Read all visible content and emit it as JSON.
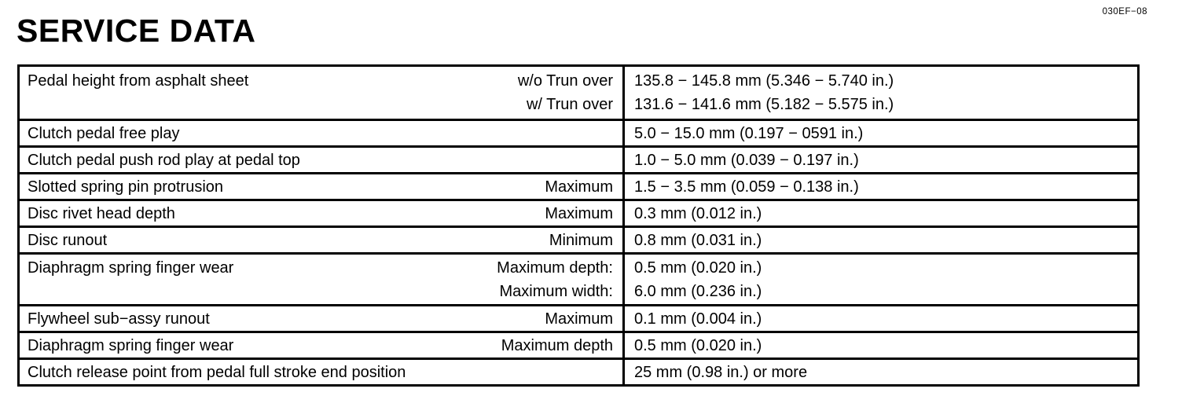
{
  "page": {
    "title": "SERVICE DATA",
    "doc_code": "030EF−08"
  },
  "table": {
    "rows": [
      {
        "label": "Pedal height from asphalt sheet",
        "lines": [
          {
            "qualifier": "w/o Trun over",
            "value": "135.8 − 145.8 mm (5.346 − 5.740 in.)"
          },
          {
            "qualifier": "w/ Trun over",
            "value": "131.6 − 141.6 mm (5.182 − 5.575 in.)"
          }
        ]
      },
      {
        "label": "Clutch pedal free play",
        "lines": [
          {
            "qualifier": "",
            "value": "5.0 − 15.0 mm (0.197 − 0591 in.)"
          }
        ]
      },
      {
        "label": "Clutch pedal push rod play at pedal top",
        "lines": [
          {
            "qualifier": "",
            "value": "1.0 − 5.0 mm (0.039 − 0.197 in.)"
          }
        ]
      },
      {
        "label": "Slotted spring pin protrusion",
        "lines": [
          {
            "qualifier": "Maximum",
            "value": "1.5 − 3.5 mm (0.059 − 0.138 in.)"
          }
        ]
      },
      {
        "label": "Disc rivet head depth",
        "lines": [
          {
            "qualifier": "Maximum",
            "value": "0.3 mm (0.012 in.)"
          }
        ]
      },
      {
        "label": "Disc runout",
        "lines": [
          {
            "qualifier": "Minimum",
            "value": "0.8 mm (0.031 in.)"
          }
        ]
      },
      {
        "label": "Diaphragm spring finger wear",
        "lines": [
          {
            "qualifier": "Maximum depth:",
            "value": "0.5 mm (0.020 in.)"
          },
          {
            "qualifier": "Maximum width:",
            "value": "6.0 mm (0.236 in.)"
          }
        ]
      },
      {
        "label": "Flywheel sub−assy runout",
        "lines": [
          {
            "qualifier": "Maximum",
            "value": "0.1 mm (0.004 in.)"
          }
        ]
      },
      {
        "label": "Diaphragm spring finger wear",
        "lines": [
          {
            "qualifier": "Maximum depth",
            "value": "0.5 mm (0.020 in.)"
          }
        ]
      },
      {
        "label": "Clutch release point from pedal full stroke end position",
        "lines": [
          {
            "qualifier": "",
            "value": "25 mm (0.98 in.) or more"
          }
        ]
      }
    ]
  }
}
